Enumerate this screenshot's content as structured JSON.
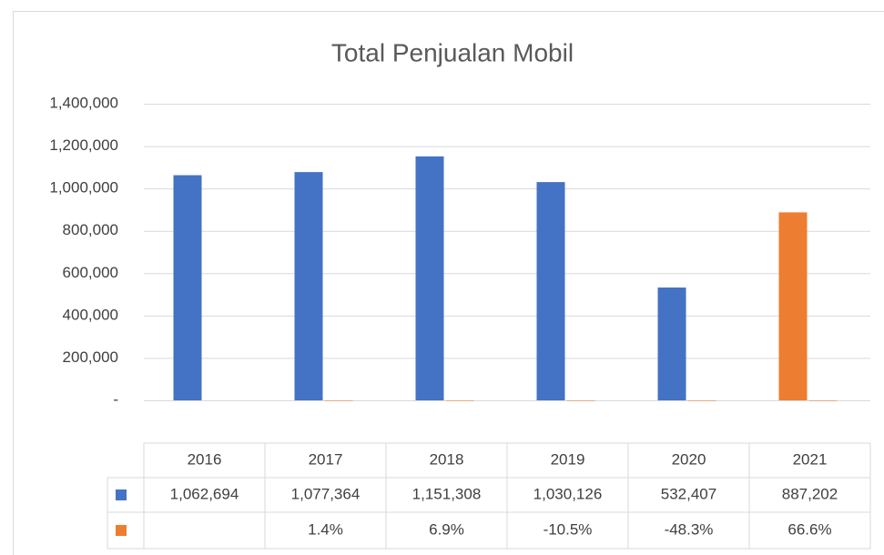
{
  "chart_data": {
    "type": "bar",
    "title": "Total Penjualan Mobil",
    "categories": [
      "2016",
      "2017",
      "2018",
      "2019",
      "2020",
      "2021"
    ],
    "series": [
      {
        "color": "#4472c4",
        "colors": [
          "#4472c4",
          "#4472c4",
          "#4472c4",
          "#4472c4",
          "#4472c4",
          "#ed7d31"
        ],
        "values": [
          1062694,
          1077364,
          1151308,
          1030126,
          532407,
          887202
        ],
        "value_labels": [
          "1,062,694",
          "1,077,364",
          "1,151,308",
          "1,030,126",
          "532,407",
          "887,202"
        ]
      },
      {
        "color": "#ed7d31",
        "values": [
          null,
          1.4,
          6.9,
          -10.5,
          -48.3,
          66.6
        ],
        "value_labels": [
          null,
          "1.4%",
          "6.9%",
          "-10.5%",
          "-48.3%",
          "66.6%"
        ]
      }
    ],
    "ylim": [
      0,
      1400000
    ],
    "yticks": [
      {
        "value": 0,
        "label": "-"
      },
      {
        "value": 200000,
        "label": "200,000"
      },
      {
        "value": 400000,
        "label": "400,000"
      },
      {
        "value": 600000,
        "label": "600,000"
      },
      {
        "value": 800000,
        "label": "800,000"
      },
      {
        "value": 1000000,
        "label": "1,000,000"
      },
      {
        "value": 1200000,
        "label": "1,200,000"
      },
      {
        "value": 1400000,
        "label": "1,400,000"
      }
    ],
    "grid": true,
    "data_table": true
  }
}
